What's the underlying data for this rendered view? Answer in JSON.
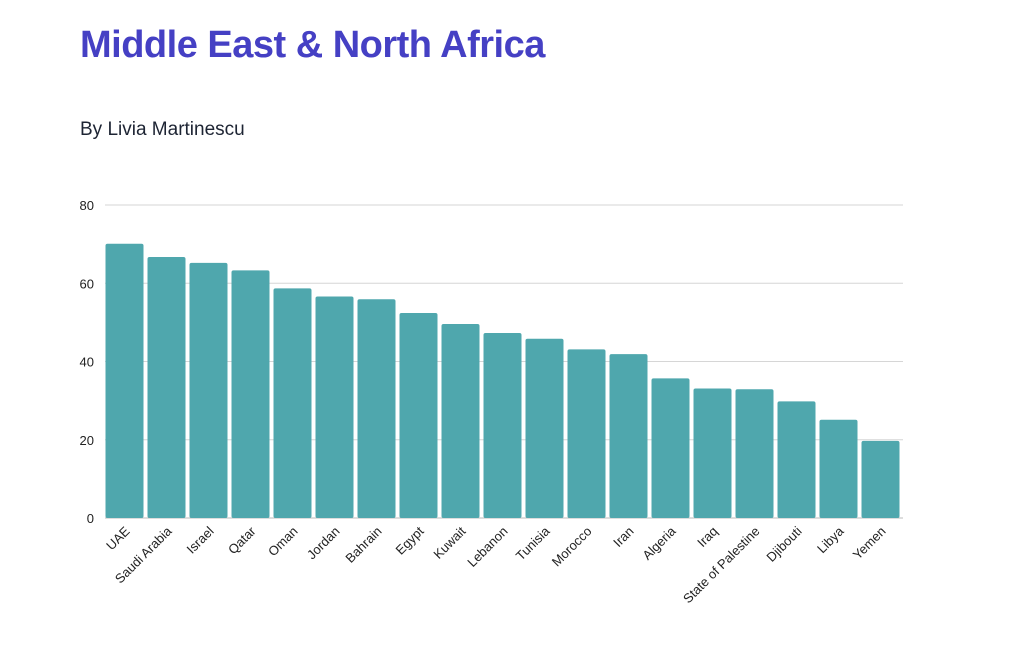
{
  "chart_data": {
    "type": "bar",
    "title": "Middle East & North Africa",
    "subtitle": "By Livia Martinescu",
    "xlabel": "",
    "ylabel": "",
    "ylim": [
      0,
      80
    ],
    "yticks": [
      0,
      20,
      40,
      60,
      80
    ],
    "grid": true,
    "bar_color": "#4fa7ad",
    "title_color": "#4540c4",
    "categories": [
      "UAE",
      "Saudi Arabia",
      "Israel",
      "Qatar",
      "Oman",
      "Jordan",
      "Bahrain",
      "Egypt",
      "Kuwait",
      "Lebanon",
      "Tunisia",
      "Morocco",
      "Iran",
      "Algeria",
      "Iraq",
      "State of Palestine",
      "Djibouti",
      "Libya",
      "Yemen"
    ],
    "values": [
      70.1,
      66.7,
      65.2,
      63.3,
      58.7,
      56.6,
      55.9,
      52.4,
      49.6,
      47.3,
      45.8,
      43.1,
      41.9,
      35.7,
      33.1,
      32.9,
      29.8,
      25.1,
      19.7
    ]
  }
}
